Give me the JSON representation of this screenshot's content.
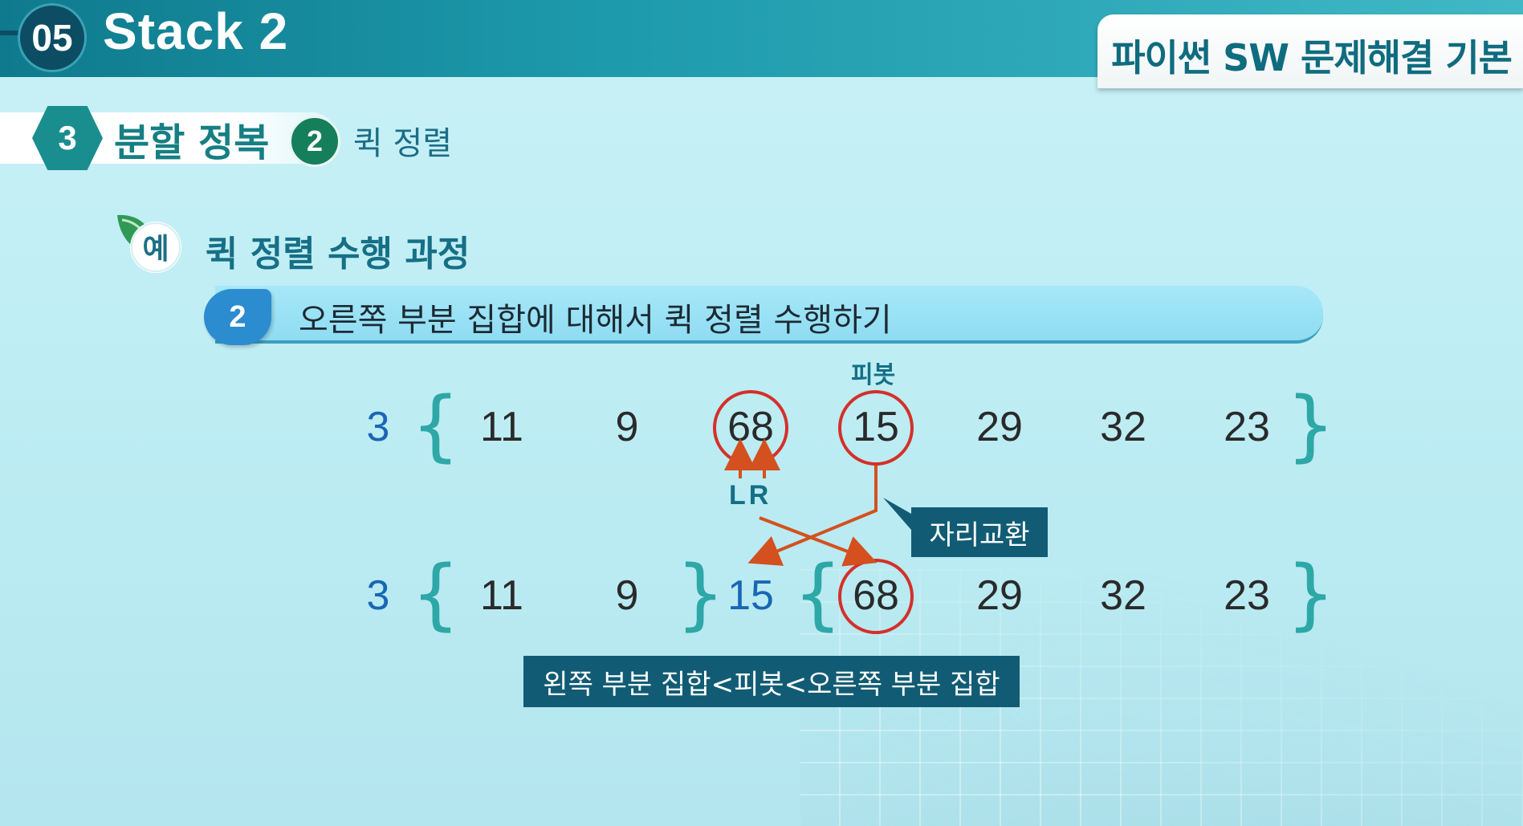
{
  "header": {
    "lesson_number": "05",
    "lesson_title": "Stack 2",
    "course_title": "파이썬 SW 문제해결 기본"
  },
  "section": {
    "number": "3",
    "title": "분할 정복",
    "sub_number": "2",
    "sub_title": "퀵 정렬"
  },
  "example": {
    "badge": "예",
    "title": "퀵 정렬 수행 과정"
  },
  "step": {
    "number": "2",
    "text": "오른쪽 부분 집합에 대해서 퀵 정렬 수행하기"
  },
  "row1": {
    "prefix": "3",
    "values": [
      "11",
      "9",
      "68",
      "15",
      "29",
      "32",
      "23"
    ]
  },
  "row2": {
    "prefix": "3",
    "left": [
      "11",
      "9"
    ],
    "pivot": "15",
    "right": [
      "68",
      "29",
      "32",
      "23"
    ]
  },
  "labels": {
    "pivot": "피봇",
    "lr": "LR",
    "swap": "자리교환",
    "note": "왼쪽 부분 집합<피봇<오른쪽 부분 집합"
  },
  "colors": {
    "circle": "#d4302a",
    "arrow": "#d4501f",
    "brace": "#2ea7a7",
    "callout": "#115c74"
  }
}
